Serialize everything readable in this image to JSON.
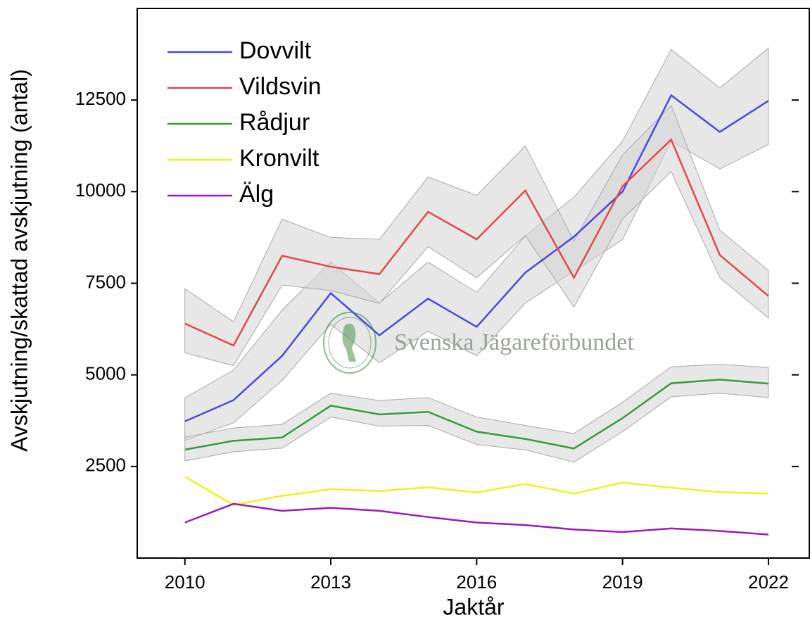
{
  "chart_data": {
    "type": "line",
    "x_label": "Jaktår",
    "y_label": "Avskjutning/skattad avskjutning (antal)",
    "watermark": "Svenska Jägareförbundet",
    "x": [
      2010,
      2011,
      2012,
      2013,
      2014,
      2015,
      2016,
      2017,
      2018,
      2019,
      2020,
      2021,
      2022
    ],
    "xlim": [
      2009.02,
      2022.84
    ],
    "xticks": [
      2010,
      2013,
      2016,
      2019,
      2022
    ],
    "ylim": [
      0,
      15000
    ],
    "yticks": [
      2500,
      5000,
      7500,
      10000,
      12500
    ],
    "band_color": "#d3d3d3",
    "legend": "upper left",
    "series": [
      {
        "name": "Dovvilt",
        "color": "#4a4ae0",
        "values": [
          3730,
          4310,
          5520,
          7230,
          6080,
          7080,
          6310,
          7790,
          8770,
          10000,
          12630,
          11630,
          12480
        ],
        "ci_upper": [
          4370,
          5130,
          6770,
          8080,
          6960,
          8080,
          7250,
          8790,
          9850,
          11380,
          13880,
          12830,
          13920
        ],
        "ci_lower": [
          3210,
          3690,
          4850,
          6380,
          5330,
          6190,
          5520,
          6960,
          7830,
          8690,
          11380,
          10620,
          11290
        ]
      },
      {
        "name": "Vildsvin",
        "color": "#e04a4a",
        "values": [
          6400,
          5800,
          8250,
          7950,
          7750,
          9450,
          8700,
          10030,
          7650,
          10150,
          11420,
          8270,
          7150
        ],
        "ci_upper": [
          7350,
          6450,
          9250,
          8750,
          8700,
          10400,
          9900,
          11250,
          8650,
          11000,
          12350,
          8950,
          7850
        ],
        "ci_lower": [
          5600,
          5250,
          7450,
          7300,
          6950,
          8500,
          7650,
          8800,
          6850,
          9250,
          10550,
          7650,
          6550
        ]
      },
      {
        "name": "Rådjur",
        "color": "#3a9a3a",
        "values": [
          2960,
          3200,
          3290,
          4160,
          3920,
          3990,
          3450,
          3250,
          2990,
          3820,
          4770,
          4870,
          4760
        ],
        "ci_upper": [
          3300,
          3550,
          3650,
          4500,
          4300,
          4380,
          3850,
          3620,
          3400,
          4250,
          5220,
          5290,
          5200
        ],
        "ci_lower": [
          2650,
          2900,
          3000,
          3850,
          3600,
          3620,
          3100,
          2950,
          2620,
          3450,
          4400,
          4500,
          4380
        ]
      },
      {
        "name": "Kronvilt",
        "color": "#f0f020",
        "values": [
          2220,
          1450,
          1700,
          1880,
          1830,
          1930,
          1790,
          2020,
          1760,
          2060,
          1920,
          1800,
          1760
        ]
      },
      {
        "name": "Älg",
        "color": "#9a1ab8",
        "values": [
          970,
          1480,
          1290,
          1370,
          1290,
          1120,
          970,
          900,
          780,
          710,
          810,
          740,
          640
        ]
      }
    ]
  }
}
